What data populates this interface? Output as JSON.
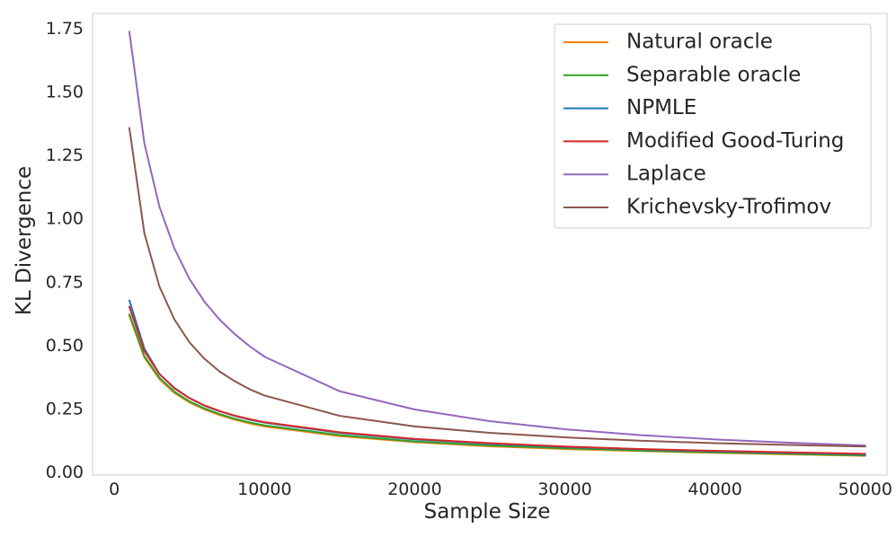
{
  "chart_data": {
    "type": "line",
    "title": "",
    "xlabel": "Sample Size",
    "ylabel": "KL Divergence",
    "xlim": [
      -1450,
      51450
    ],
    "ylim": [
      -0.0085,
      1.8115
    ],
    "xticks": [
      0,
      10000,
      20000,
      30000,
      40000,
      50000
    ],
    "yticks": [
      0.0,
      0.25,
      0.5,
      0.75,
      1.0,
      1.25,
      1.5,
      1.75
    ],
    "xtick_labels": [
      "0",
      "10000",
      "20000",
      "30000",
      "40000",
      "50000"
    ],
    "ytick_labels": [
      "0.00",
      "0.25",
      "0.50",
      "0.75",
      "1.00",
      "1.25",
      "1.50",
      "1.75"
    ],
    "grid": false,
    "legend_position": "top-right",
    "x": [
      1000,
      2000,
      3000,
      4000,
      5000,
      6000,
      7000,
      8000,
      9000,
      10000,
      15000,
      20000,
      25000,
      30000,
      35000,
      40000,
      45000,
      50000
    ],
    "series": [
      {
        "name": "Natural oracle",
        "color": "#ff7f0e",
        "values": [
          0.62,
          0.455,
          0.37,
          0.315,
          0.278,
          0.25,
          0.228,
          0.21,
          0.195,
          0.183,
          0.145,
          0.121,
          0.105,
          0.094,
          0.086,
          0.079,
          0.073,
          0.067
        ]
      },
      {
        "name": "Separable oracle",
        "color": "#2ca02c",
        "values": [
          0.625,
          0.46,
          0.375,
          0.32,
          0.282,
          0.254,
          0.232,
          0.214,
          0.199,
          0.187,
          0.149,
          0.124,
          0.108,
          0.097,
          0.088,
          0.081,
          0.075,
          0.069
        ]
      },
      {
        "name": "NPMLE",
        "color": "#1f77b4",
        "values": [
          0.68,
          0.49,
          0.39,
          0.335,
          0.295,
          0.265,
          0.243,
          0.225,
          0.21,
          0.198,
          0.158,
          0.132,
          0.115,
          0.102,
          0.093,
          0.085,
          0.079,
          0.073
        ]
      },
      {
        "name": "Modified Good-Turing",
        "color": "#d62728",
        "values": [
          0.655,
          0.48,
          0.39,
          0.333,
          0.295,
          0.266,
          0.244,
          0.226,
          0.212,
          0.2,
          0.16,
          0.134,
          0.117,
          0.104,
          0.094,
          0.087,
          0.081,
          0.075
        ]
      },
      {
        "name": "Laplace",
        "color": "#9467bd",
        "values": [
          1.74,
          1.3,
          1.05,
          0.885,
          0.765,
          0.675,
          0.605,
          0.548,
          0.5,
          0.458,
          0.322,
          0.25,
          0.204,
          0.172,
          0.149,
          0.132,
          0.119,
          0.108
        ]
      },
      {
        "name": "Krichevsky-Trofimov",
        "color": "#8c564b",
        "values": [
          1.36,
          0.945,
          0.735,
          0.605,
          0.515,
          0.45,
          0.4,
          0.362,
          0.33,
          0.305,
          0.225,
          0.183,
          0.158,
          0.14,
          0.127,
          0.117,
          0.11,
          0.104
        ]
      }
    ]
  }
}
